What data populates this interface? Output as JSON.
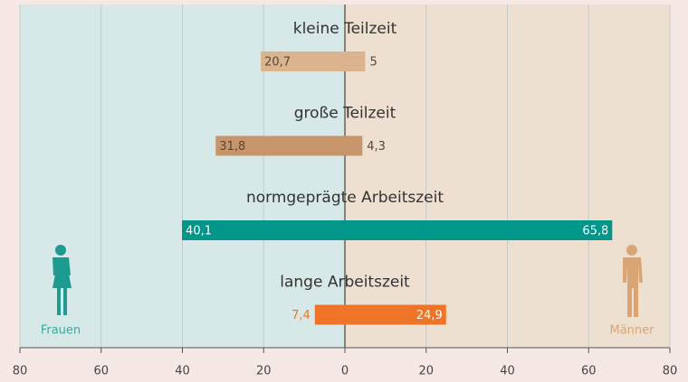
{
  "chart_data": {
    "type": "butterfly-bar",
    "categories": [
      "kleine Teilzeit",
      "große Teilzeit",
      "normgeprägte Arbeitszeit",
      "lange Arbeitszeit"
    ],
    "colors": [
      "#d9b48f",
      "#c8956a",
      "#00968a",
      "#f07428"
    ],
    "label_colors": [
      "#5a4636",
      "#5a4636",
      "#ffffff",
      "#ffffff"
    ],
    "series": [
      {
        "name": "Frauen",
        "color": "#3aa8a0",
        "side": "left",
        "values": [
          20.7,
          31.8,
          40.1,
          7.4
        ],
        "value_labels": [
          "20,7",
          "31,8",
          "40,1",
          "7,4"
        ]
      },
      {
        "name": "Männer",
        "color": "#d9a574",
        "side": "right",
        "values": [
          5,
          4.3,
          65.8,
          24.9
        ],
        "value_labels": [
          "5",
          "4,3",
          "65,8",
          "24,9"
        ]
      }
    ],
    "xlim": [
      -80,
      80
    ],
    "xticks": [
      {
        "value": -80,
        "label": "80"
      },
      {
        "value": -60,
        "label": "60"
      },
      {
        "value": -40,
        "label": "40"
      },
      {
        "value": -20,
        "label": "20"
      },
      0,
      20,
      40,
      60,
      80
    ],
    "grid": true
  }
}
